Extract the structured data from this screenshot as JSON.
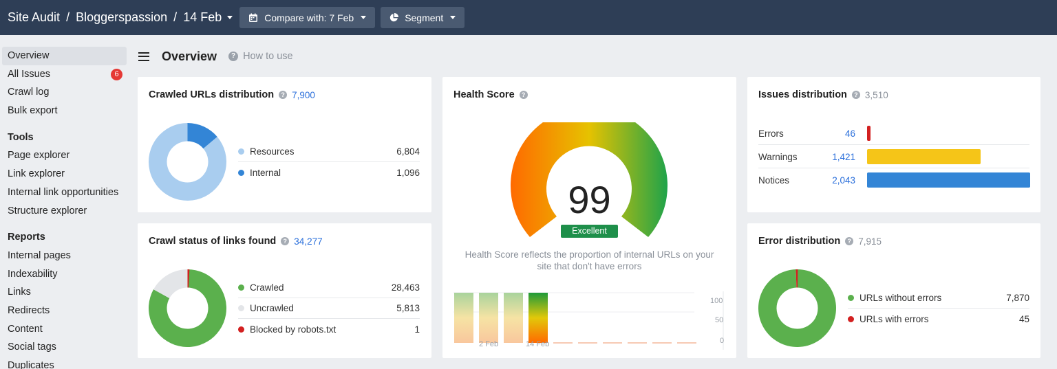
{
  "topbar": {
    "crumbs": [
      "Site Audit",
      "Bloggerspassion",
      "14 Feb"
    ],
    "compare_label": "Compare with: 7 Feb",
    "segment_label": "Segment",
    "calendar_icon": "calendar-icon",
    "segment_icon": "pie-icon"
  },
  "sidebar": {
    "main": [
      {
        "label": "Overview",
        "active": true
      },
      {
        "label": "All Issues",
        "badge": "6"
      },
      {
        "label": "Crawl log"
      },
      {
        "label": "Bulk export"
      }
    ],
    "tools_heading": "Tools",
    "tools": [
      "Page explorer",
      "Link explorer",
      "Internal link opportunities",
      "Structure explorer"
    ],
    "reports_heading": "Reports",
    "reports": [
      "Internal pages",
      "Indexability",
      "Links",
      "Redirects",
      "Content",
      "Social tags",
      "Duplicates"
    ]
  },
  "page": {
    "title": "Overview",
    "how_to": "How to use"
  },
  "crawled": {
    "title": "Crawled URLs distribution",
    "count": "7,900",
    "items": [
      {
        "label": "Resources",
        "value": "6,804",
        "color": "#a9cdef"
      },
      {
        "label": "Internal",
        "value": "1,096",
        "color": "#3385d6"
      }
    ]
  },
  "crawl_status": {
    "title": "Crawl status of links found",
    "count": "34,277",
    "items": [
      {
        "label": "Crawled",
        "value": "28,463",
        "color": "#5bb04d"
      },
      {
        "label": "Uncrawled",
        "value": "5,813",
        "color": "#e3e5e8"
      },
      {
        "label": "Blocked by robots.txt",
        "value": "1",
        "color": "#d32020"
      }
    ]
  },
  "health": {
    "title": "Health Score",
    "score": "99",
    "badge": "Excellent",
    "description": "Health Score reflects the proportion of internal URLs on your site that don't have errors",
    "y_ticks": [
      "100",
      "50",
      "0"
    ],
    "x_ticks": [
      "2 Feb",
      "14 Feb"
    ]
  },
  "issues": {
    "title": "Issues distribution",
    "count": "3,510",
    "rows": [
      {
        "label": "Errors",
        "value": "46",
        "color": "#d32020"
      },
      {
        "label": "Warnings",
        "value": "1,421",
        "color": "#f5c518"
      },
      {
        "label": "Notices",
        "value": "2,043",
        "color": "#3385d6"
      }
    ]
  },
  "errors": {
    "title": "Error distribution",
    "count": "7,915",
    "items": [
      {
        "label": "URLs without errors",
        "value": "7,870",
        "color": "#5bb04d"
      },
      {
        "label": "URLs with errors",
        "value": "45",
        "color": "#d32020"
      }
    ]
  }
}
